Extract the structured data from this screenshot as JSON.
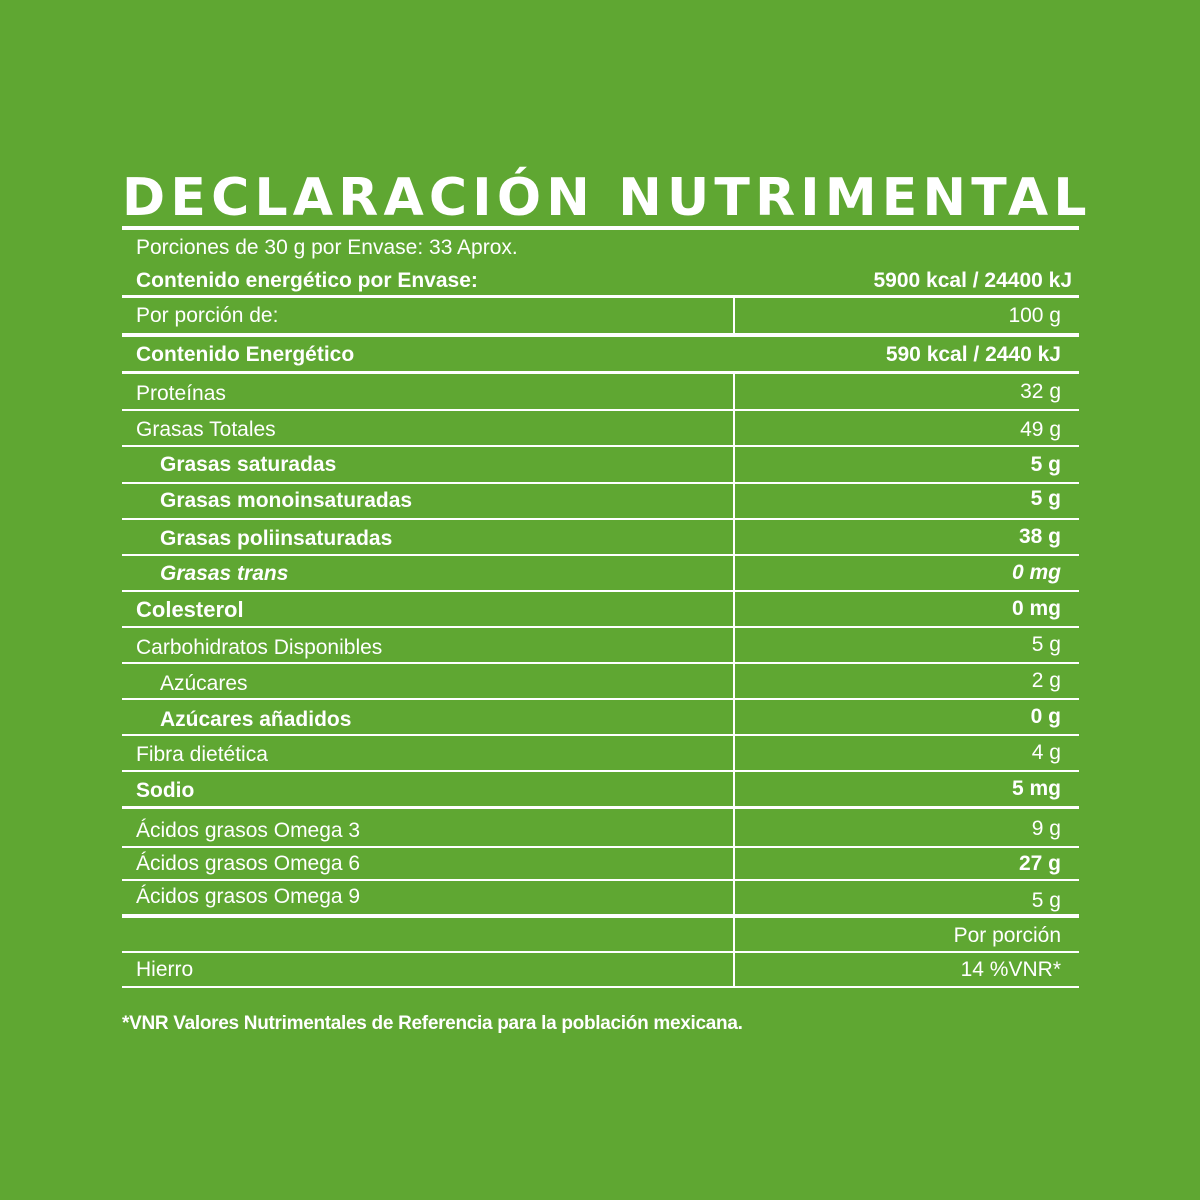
{
  "title": "DECLARACIÓN NUTRIMENTAL",
  "servings": "Porciones de 30 g por Envase: 33 Aprox.",
  "energy_per_package": {
    "label": "Contenido energético por Envase:",
    "value": "5900 kcal / 24400 kJ"
  },
  "per_portion": {
    "label": "Por porción de:",
    "value": "100 g"
  },
  "rows": [
    {
      "label": "Contenido Energético",
      "value": "590 kcal / 2440 kJ"
    },
    {
      "label": "Proteínas",
      "value": "32 g"
    },
    {
      "label": "Grasas Totales",
      "value": "49 g"
    },
    {
      "label": "Grasas saturadas",
      "value": "5 g"
    },
    {
      "label": "Grasas monoinsaturadas",
      "value": "5 g"
    },
    {
      "label": "Grasas poliinsaturadas",
      "value": "38 g"
    },
    {
      "label": "Grasas trans",
      "value": "0 mg"
    },
    {
      "label": "Colesterol",
      "value": "0 mg"
    },
    {
      "label": "Carbohidratos Disponibles",
      "value": "5 g"
    },
    {
      "label": "Azúcares",
      "value": "2 g"
    },
    {
      "label": "Azúcares añadidos",
      "value": "0 g"
    },
    {
      "label": "Fibra dietética",
      "value": "4 g"
    },
    {
      "label": "Sodio",
      "value": "5 mg"
    },
    {
      "label": "Ácidos grasos Omega 3",
      "value": "9 g"
    },
    {
      "label": "Ácidos grasos Omega 6",
      "value": "27 g"
    },
    {
      "label": "Ácidos grasos Omega 9",
      "value": "5 g"
    }
  ],
  "vitamins": {
    "header": "Por porción",
    "rows": [
      {
        "label": "Hierro",
        "value": "14 %VNR*"
      }
    ]
  },
  "footnote": "*VNR Valores Nutrimentales de Referencia para la población mexicana.",
  "colors": {
    "background": "#5fa732",
    "foreground": "#ffffff"
  }
}
